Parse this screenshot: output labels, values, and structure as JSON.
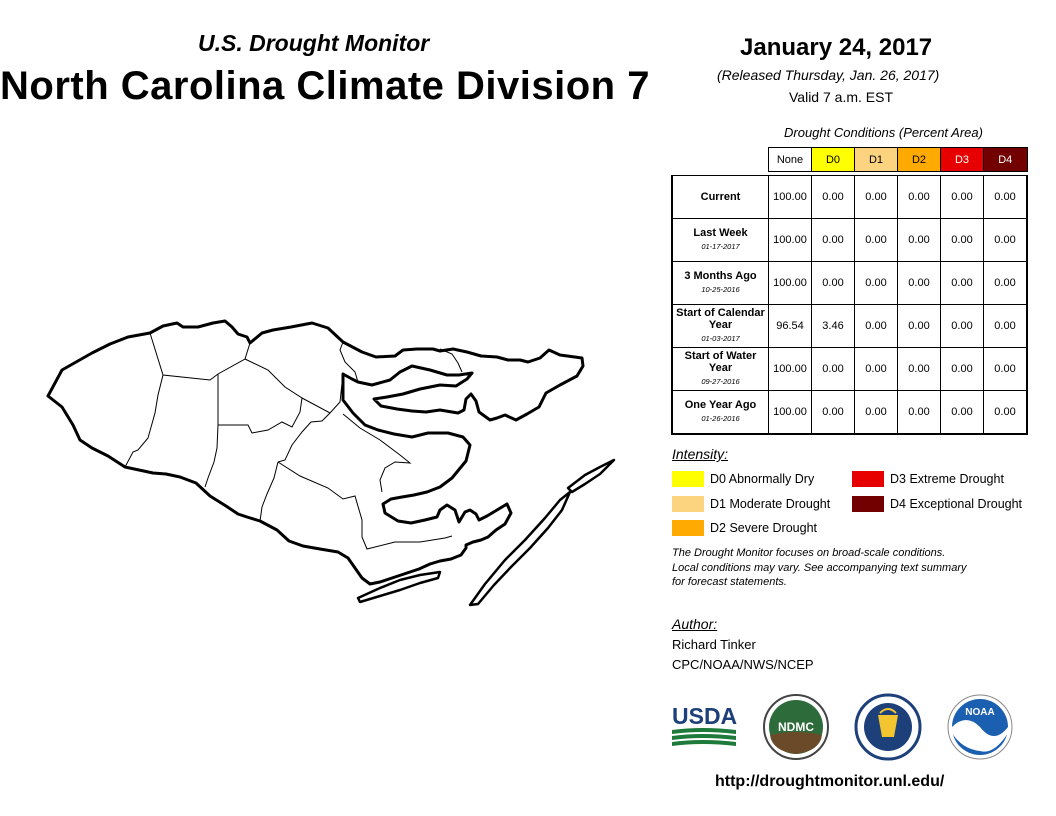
{
  "header": {
    "subtitle": "U.S. Drought Monitor",
    "title": "North Carolina Climate Division 7",
    "date": "January 24, 2017",
    "released": "(Released Thursday, Jan. 26, 2017)",
    "valid": "Valid 7 a.m. EST"
  },
  "table": {
    "title": "Drought Conditions (Percent Area)",
    "columns": [
      {
        "label": "None",
        "color": "#ffffff"
      },
      {
        "label": "D0",
        "color": "#ffff00"
      },
      {
        "label": "D1",
        "color": "#fcd37f"
      },
      {
        "label": "D2",
        "color": "#ffaa00"
      },
      {
        "label": "D3",
        "color": "#e60000"
      },
      {
        "label": "D4",
        "color": "#730000"
      }
    ],
    "rows": [
      {
        "label": "Current",
        "date": "",
        "values": [
          "100.00",
          "0.00",
          "0.00",
          "0.00",
          "0.00",
          "0.00"
        ]
      },
      {
        "label": "Last Week",
        "date": "01-17-2017",
        "values": [
          "100.00",
          "0.00",
          "0.00",
          "0.00",
          "0.00",
          "0.00"
        ]
      },
      {
        "label": "3 Months Ago",
        "date": "10-25-2016",
        "values": [
          "100.00",
          "0.00",
          "0.00",
          "0.00",
          "0.00",
          "0.00"
        ]
      },
      {
        "label": "Start of Calendar Year",
        "date": "01-03-2017",
        "values": [
          "96.54",
          "3.46",
          "0.00",
          "0.00",
          "0.00",
          "0.00"
        ]
      },
      {
        "label": "Start of Water Year",
        "date": "09-27-2016",
        "values": [
          "100.00",
          "0.00",
          "0.00",
          "0.00",
          "0.00",
          "0.00"
        ]
      },
      {
        "label": "One Year Ago",
        "date": "01-26-2016",
        "values": [
          "100.00",
          "0.00",
          "0.00",
          "0.00",
          "0.00",
          "0.00"
        ]
      }
    ]
  },
  "legend": {
    "title": "Intensity:",
    "items": [
      {
        "label": "D0 Abnormally Dry",
        "color": "#ffff00"
      },
      {
        "label": "D1 Moderate Drought",
        "color": "#fcd37f"
      },
      {
        "label": "D2 Severe Drought",
        "color": "#ffaa00"
      },
      {
        "label": "D3 Extreme Drought",
        "color": "#e60000"
      },
      {
        "label": "D4 Exceptional Drought",
        "color": "#730000"
      }
    ]
  },
  "note": {
    "line1": "The Drought Monitor focuses on broad-scale conditions.",
    "line2": "Local conditions may vary. See accompanying text summary",
    "line3": "for forecast statements."
  },
  "author": {
    "title": "Author:",
    "name": "Richard Tinker",
    "org": "CPC/NOAA/NWS/NCEP"
  },
  "logos": {
    "usda": "USDA",
    "ndmc": "NDMC",
    "noaa": "NOAA"
  },
  "url": "http://droughtmonitor.unl.edu/"
}
